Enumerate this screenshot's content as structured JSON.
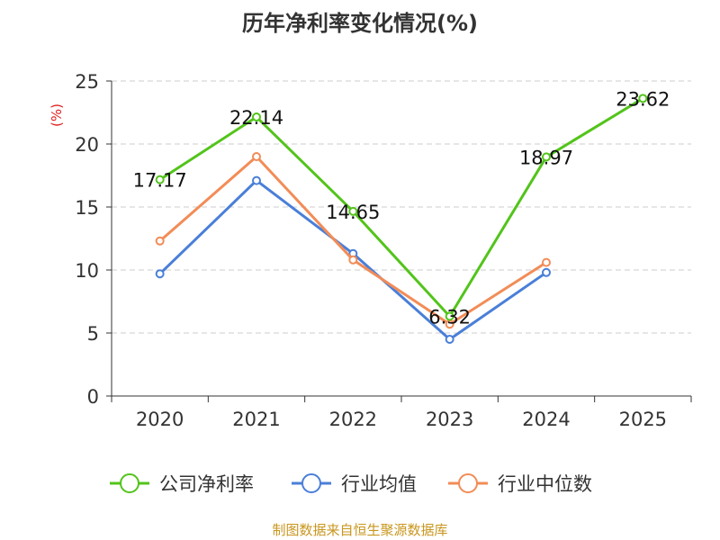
{
  "chart_data": {
    "type": "line",
    "title": "历年净利率变化情况(%)",
    "ylabel": "(%)",
    "xlabel": "",
    "categories": [
      "2020",
      "2021",
      "2022",
      "2023",
      "2024",
      "2025"
    ],
    "ylim": [
      0,
      25
    ],
    "yticks": [
      0,
      5,
      10,
      15,
      20,
      25
    ],
    "grid": true,
    "legend_position": "bottom",
    "series": [
      {
        "name": "公司净利率",
        "color": "#52c41a",
        "values": [
          17.17,
          22.14,
          14.65,
          6.32,
          18.97,
          23.62
        ],
        "data_labels": [
          "17.17",
          "22.14",
          "14.65",
          "6.32",
          "18.97",
          "23.62"
        ]
      },
      {
        "name": "行业均值",
        "color": "#4a7fd8",
        "values": [
          9.7,
          17.1,
          11.3,
          4.5,
          9.8,
          null
        ]
      },
      {
        "name": "行业中位数",
        "color": "#f28c57",
        "values": [
          12.3,
          19.0,
          10.8,
          5.7,
          10.6,
          null
        ]
      }
    ],
    "source": "制图数据来自恒生聚源数据库",
    "source_color": "#c8961e",
    "ylabel_color": "#e02020"
  }
}
